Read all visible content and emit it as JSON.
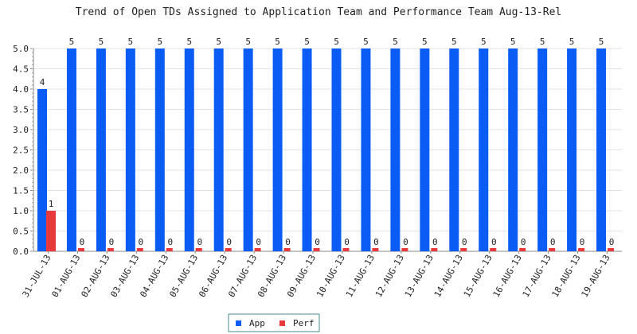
{
  "chart_data": {
    "type": "bar",
    "title": "Trend of Open TDs Assigned to Application Team and Performance Team Aug-13-Rel",
    "xlabel": "",
    "ylabel": "",
    "ylim": [
      0,
      5
    ],
    "yticks": [
      0,
      0.5,
      1,
      1.5,
      2,
      2.5,
      3,
      3.5,
      4,
      4.5,
      5
    ],
    "ytick_labels": [
      "0.0",
      "0.5",
      "1.0",
      "1.5",
      "2.0",
      "2.5",
      "3.0",
      "3.5",
      "4.0",
      "4.5",
      "5.0"
    ],
    "categories": [
      "31-JUL-13",
      "01-AUG-13",
      "02-AUG-13",
      "03-AUG-13",
      "04-AUG-13",
      "05-AUG-13",
      "06-AUG-13",
      "07-AUG-13",
      "08-AUG-13",
      "09-AUG-13",
      "10-AUG-13",
      "11-AUG-13",
      "12-AUG-13",
      "13-AUG-13",
      "14-AUG-13",
      "15-AUG-13",
      "16-AUG-13",
      "17-AUG-13",
      "18-AUG-13",
      "19-AUG-13"
    ],
    "series": [
      {
        "name": "App",
        "color": "#0a5cf5",
        "values": [
          4,
          5,
          5,
          5,
          5,
          5,
          5,
          5,
          5,
          5,
          5,
          5,
          5,
          5,
          5,
          5,
          5,
          5,
          5,
          5
        ]
      },
      {
        "name": "Perf",
        "color": "#e8393c",
        "values": [
          1,
          0,
          0,
          0,
          0,
          0,
          0,
          0,
          0,
          0,
          0,
          0,
          0,
          0,
          0,
          0,
          0,
          0,
          0,
          0
        ]
      }
    ],
    "grid": true,
    "legend_position": "bottom-center",
    "data_labels": true
  }
}
